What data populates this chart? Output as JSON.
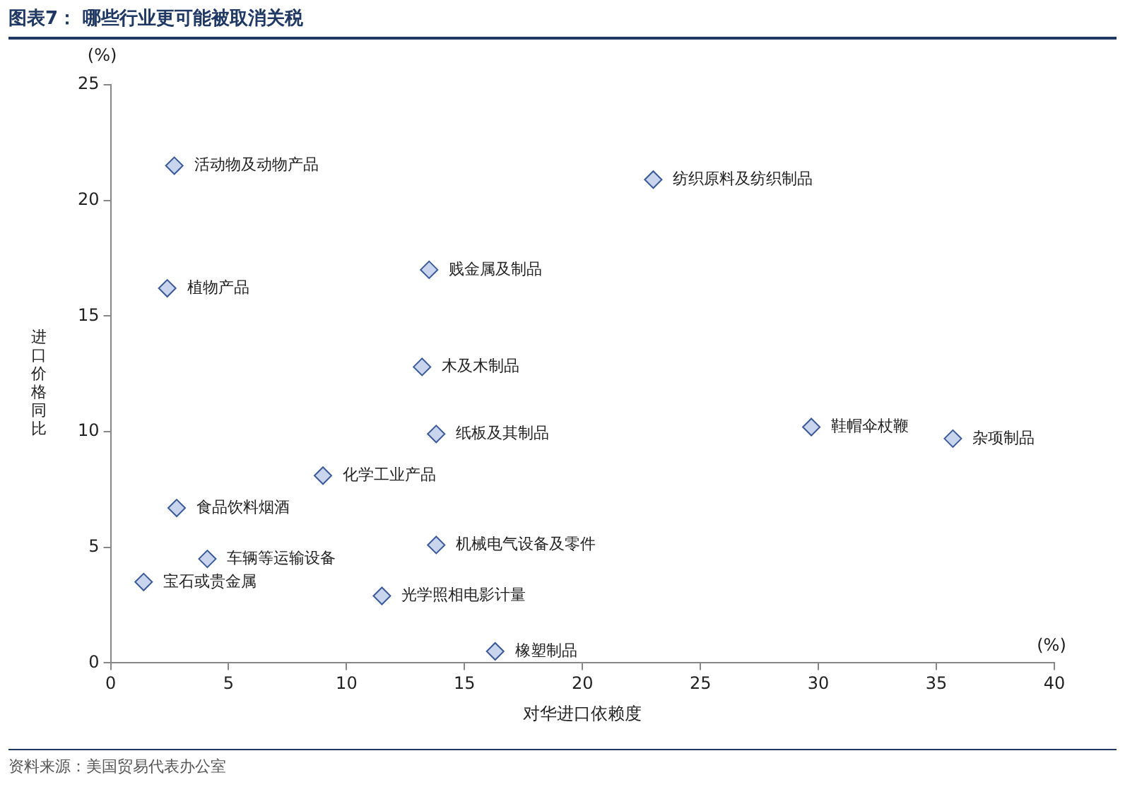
{
  "chart_data": {
    "type": "scatter",
    "title": "图表7： 哪些行业更可能被取消关税",
    "xlabel": "对华进口依赖度",
    "ylabel": "进口价格同比",
    "series": [
      {
        "color": "#c9d5ec",
        "x": [
          2.7,
          23.0,
          2.4,
          13.5,
          13.2,
          29.7,
          35.7,
          13.8,
          9.0,
          2.8,
          13.8,
          4.1,
          1.4,
          11.5,
          16.3
        ],
        "values": [
          21.5,
          20.9,
          16.2,
          17.0,
          12.8,
          10.2,
          9.7,
          9.9,
          8.1,
          6.7,
          5.1,
          4.5,
          3.5,
          2.9,
          0.5
        ]
      }
    ],
    "marker": "diamond",
    "xlim": [
      0,
      40
    ],
    "xticks": [
      0,
      5,
      10,
      15,
      20,
      25,
      30,
      35,
      40
    ],
    "ylim": [
      0,
      25
    ],
    "yticks": [
      0,
      5,
      10,
      15,
      20,
      25
    ],
    "grid": false,
    "legend": false,
    "annotations": [
      "(%)",
      "(%)",
      "资料来源：美国贸易代表办公室",
      {
        "text": "活动物及动物产品",
        "x": 2.7,
        "y": 21.5
      },
      {
        "text": "纺织原料及纺织制品",
        "x": 23.0,
        "y": 20.9
      },
      {
        "text": "植物产品",
        "x": 2.4,
        "y": 16.2
      },
      {
        "text": "贱金属及制品",
        "x": 13.5,
        "y": 17.0
      },
      {
        "text": "木及木制品",
        "x": 13.2,
        "y": 12.8
      },
      {
        "text": "鞋帽伞杖鞭",
        "x": 29.7,
        "y": 10.2
      },
      {
        "text": "杂项制品",
        "x": 35.7,
        "y": 9.7
      },
      {
        "text": "纸板及其制品",
        "x": 13.8,
        "y": 9.9
      },
      {
        "text": "化学工业产品",
        "x": 9.0,
        "y": 8.1
      },
      {
        "text": "食品饮料烟酒",
        "x": 2.8,
        "y": 6.7
      },
      {
        "text": "机械电气设备及零件",
        "x": 13.8,
        "y": 5.1
      },
      {
        "text": "车辆等运输设备",
        "x": 4.1,
        "y": 4.5
      },
      {
        "text": "宝石或贵金属",
        "x": 1.4,
        "y": 3.5
      },
      {
        "text": "光学照相电影计量",
        "x": 11.5,
        "y": 2.9
      },
      {
        "text": "橡塑制品",
        "x": 16.3,
        "y": 0.5
      }
    ]
  }
}
